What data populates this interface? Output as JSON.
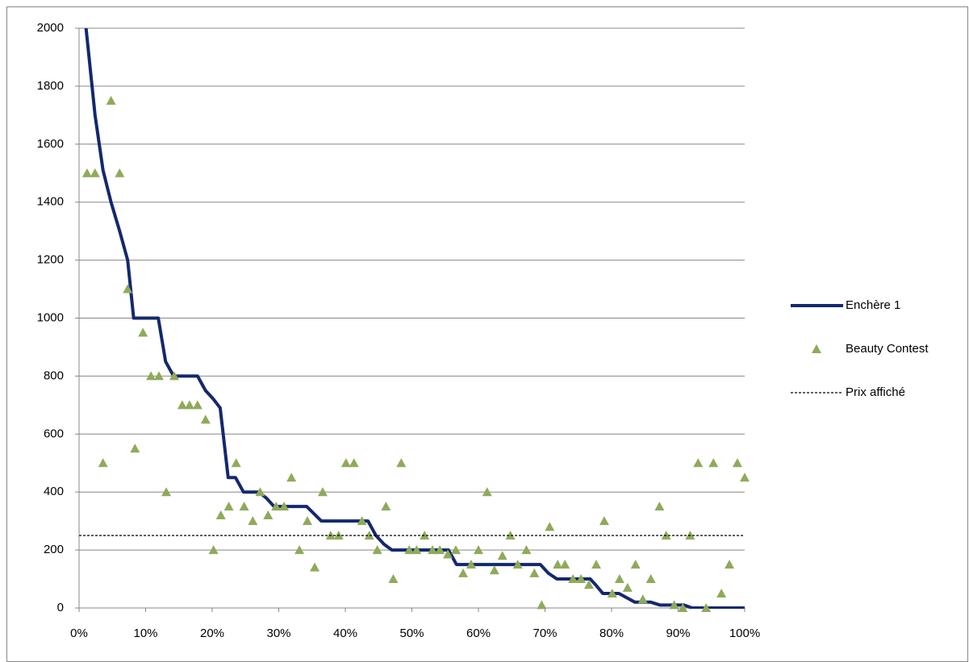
{
  "chart_data": {
    "type": "line",
    "xlim": [
      0,
      100
    ],
    "xticks": [
      {
        "value": 0,
        "label": "0%"
      },
      {
        "value": 10,
        "label": "10%"
      },
      {
        "value": 20,
        "label": "20%"
      },
      {
        "value": 30,
        "label": "30%"
      },
      {
        "value": 40,
        "label": "40%"
      },
      {
        "value": 50,
        "label": "50%"
      },
      {
        "value": 60,
        "label": "60%"
      },
      {
        "value": 70,
        "label": "70%"
      },
      {
        "value": 80,
        "label": "80%"
      },
      {
        "value": 90,
        "label": "90%"
      },
      {
        "value": 100,
        "label": "100%"
      }
    ],
    "ylim": [
      0,
      2000
    ],
    "yticks": [
      0,
      200,
      400,
      600,
      800,
      1000,
      1200,
      1400,
      1600,
      1800,
      2000
    ],
    "grid": true,
    "legend": "right",
    "series": [
      {
        "name": "Enchère 1",
        "style": "line",
        "color": "#14286e",
        "x": [
          0.6,
          2.4,
          3.6,
          4.8,
          6.1,
          7.3,
          8.2,
          11.9,
          13,
          14.2,
          17.8,
          19,
          20.2,
          21.2,
          22.4,
          23.5,
          24.7,
          27,
          28.1,
          29.3,
          34.2,
          36.4,
          43.4,
          44.6,
          45.8,
          47,
          55.5,
          56.7,
          69.3,
          70.5,
          71.8,
          76.8,
          77.6,
          78.7,
          81.1,
          82.3,
          83.5,
          85.9,
          87.3,
          90.9,
          92.1,
          100
        ],
        "values": [
          2100,
          1700,
          1510,
          1400,
          1300,
          1200,
          1000,
          1000,
          850,
          800,
          800,
          750,
          720,
          690,
          450,
          450,
          400,
          400,
          380,
          350,
          350,
          300,
          300,
          250,
          220,
          200,
          200,
          150,
          150,
          120,
          100,
          100,
          80,
          50,
          50,
          35,
          20,
          20,
          10,
          10,
          0,
          0
        ]
      },
      {
        "name": "Beauty Contest",
        "style": "scatter",
        "color": "#8faa5a",
        "x": [
          1.2,
          2.4,
          3.6,
          4.8,
          6.1,
          7.3,
          8.4,
          9.6,
          10.8,
          12,
          13.1,
          14.3,
          15.5,
          16.6,
          17.8,
          19,
          20.2,
          21.3,
          22.5,
          23.6,
          24.8,
          26.1,
          27.2,
          28.4,
          29.6,
          30.8,
          31.9,
          33.1,
          34.3,
          35.4,
          36.6,
          37.8,
          39,
          40.1,
          41.3,
          42.5,
          43.6,
          44.8,
          46.1,
          47.2,
          48.4,
          49.6,
          50.7,
          51.9,
          53.1,
          54.2,
          55.4,
          56.6,
          57.7,
          58.9,
          60,
          61.3,
          62.4,
          63.6,
          64.8,
          65.9,
          67.2,
          68.4,
          69.5,
          70.7,
          71.9,
          73,
          74.2,
          75.4,
          76.6,
          77.7,
          78.9,
          80.1,
          81.2,
          82.4,
          83.6,
          84.7,
          85.9,
          87.2,
          88.2,
          89.4,
          90.7,
          91.8,
          93,
          94.2,
          95.3,
          96.5,
          97.7,
          98.9,
          100
        ],
        "values": [
          1500,
          1500,
          500,
          1750,
          1500,
          1100,
          550,
          950,
          800,
          800,
          400,
          800,
          700,
          700,
          700,
          650,
          200,
          320,
          350,
          500,
          350,
          300,
          400,
          320,
          350,
          350,
          450,
          200,
          300,
          140,
          400,
          250,
          250,
          500,
          500,
          300,
          250,
          200,
          350,
          100,
          500,
          200,
          200,
          250,
          200,
          200,
          185,
          200,
          120,
          150,
          200,
          400,
          130,
          180,
          250,
          150,
          200,
          120,
          10,
          280,
          150,
          150,
          100,
          100,
          80,
          150,
          300,
          50,
          100,
          70,
          150,
          30,
          100,
          350,
          250,
          10,
          0,
          250,
          500,
          0,
          500,
          50,
          150,
          500,
          450
        ]
      },
      {
        "name": "Prix affiché",
        "style": "dashed",
        "color": "#000000",
        "x": [
          0,
          100
        ],
        "values": [
          250,
          250
        ]
      }
    ]
  }
}
